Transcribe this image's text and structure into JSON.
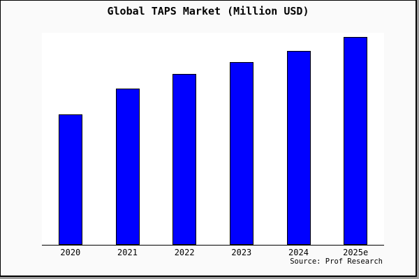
{
  "chart_data": {
    "type": "bar",
    "title": "Global TAPS Market (Million USD)",
    "categories": [
      "2020",
      "2021",
      "2022",
      "2023",
      "2024",
      "2025e"
    ],
    "values": [
      62.8,
      75.1,
      82.1,
      88.0,
      93.4,
      100.0
    ],
    "value_note": "no y-axis shown in chart; values are relative bar heights with 2025e = 100",
    "xlabel": "",
    "ylabel": "",
    "ylim": [
      0,
      102
    ],
    "grid": false,
    "legend": false,
    "bar_color": "#0000ff",
    "bar_border_color": "#000000",
    "source": "Source: Prof Research"
  },
  "colors": {
    "figure_background": "#fafafa",
    "plot_background": "#ffffff",
    "axis": "#000000",
    "text": "#000000",
    "outer_shadow": "#9e9e9e"
  }
}
